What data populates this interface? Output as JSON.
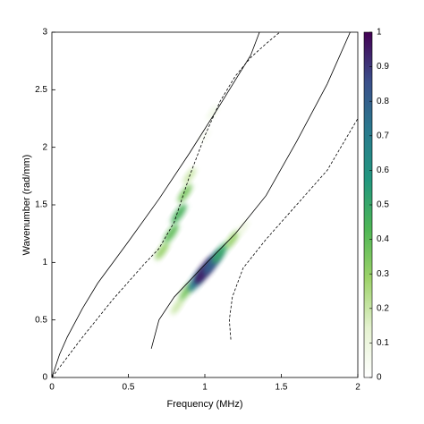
{
  "chart_data": {
    "type": "heatmap-lines",
    "xlabel": "Frequency (MHz)",
    "ylabel": "Wavenumber (rad/mm)",
    "xlim": [
      0,
      2
    ],
    "ylim": [
      0,
      3
    ],
    "xticks": [
      0,
      0.5,
      1,
      1.5,
      2
    ],
    "yticks": [
      0,
      0.5,
      1,
      1.5,
      2,
      2.5,
      3
    ],
    "colorbar": {
      "lim": [
        0,
        1
      ],
      "ticks": [
        0,
        0.1,
        0.2,
        0.3,
        0.4,
        0.5,
        0.6,
        0.7,
        0.8,
        0.9,
        1
      ],
      "colormap": [
        "#ffffff",
        "#e5f2d0",
        "#9ed36a",
        "#4fb655",
        "#22977f",
        "#2a7a8e",
        "#3b4f8a",
        "#440154"
      ]
    },
    "heatmap": {
      "x": [
        0.72,
        0.78,
        0.83,
        0.87,
        0.9,
        1.0,
        1.05,
        0.82,
        0.88,
        0.95,
        1.0,
        1.05,
        1.1,
        1.18,
        1.25
      ],
      "y": [
        1.1,
        1.25,
        1.42,
        1.6,
        1.75,
        2.1,
        2.3,
        0.62,
        0.75,
        0.85,
        0.93,
        1.0,
        1.08,
        1.2,
        1.3
      ],
      "values": [
        0.3,
        0.4,
        0.45,
        0.35,
        0.2,
        0.05,
        0.08,
        0.2,
        0.35,
        0.7,
        0.95,
        0.8,
        0.5,
        0.3,
        0.1
      ]
    },
    "lines": [
      {
        "style": "solid",
        "color": "#000000",
        "x": [
          0,
          0.05,
          0.1,
          0.2,
          0.3,
          0.5,
          0.7,
          0.9,
          1.1,
          1.3,
          1.357
        ],
        "y": [
          0,
          0.2,
          0.35,
          0.6,
          0.82,
          1.18,
          1.55,
          1.95,
          2.37,
          2.8,
          3
        ]
      },
      {
        "style": "dashed",
        "color": "#000000",
        "x": [
          0,
          0.2,
          0.4,
          0.6,
          0.7,
          0.8,
          0.85,
          0.9,
          1.0,
          1.1,
          1.2,
          1.3,
          1.4,
          1.49
        ],
        "y": [
          0,
          0.35,
          0.68,
          0.98,
          1.12,
          1.35,
          1.55,
          1.75,
          2.1,
          2.4,
          2.62,
          2.78,
          2.9,
          3
        ]
      },
      {
        "style": "solid",
        "color": "#000000",
        "x": [
          0.65,
          0.7,
          0.8,
          1.0,
          1.2,
          1.4,
          1.6,
          1.8,
          1.95
        ],
        "y": [
          0.25,
          0.5,
          0.7,
          0.98,
          1.25,
          1.58,
          2.05,
          2.55,
          3
        ]
      },
      {
        "style": "dashed",
        "color": "#000000",
        "x": [
          1.17,
          1.16,
          1.18,
          1.25,
          1.4,
          1.6,
          1.8,
          2.0
        ],
        "y": [
          0.33,
          0.5,
          0.7,
          0.95,
          1.2,
          1.5,
          1.8,
          2.25
        ]
      }
    ]
  }
}
